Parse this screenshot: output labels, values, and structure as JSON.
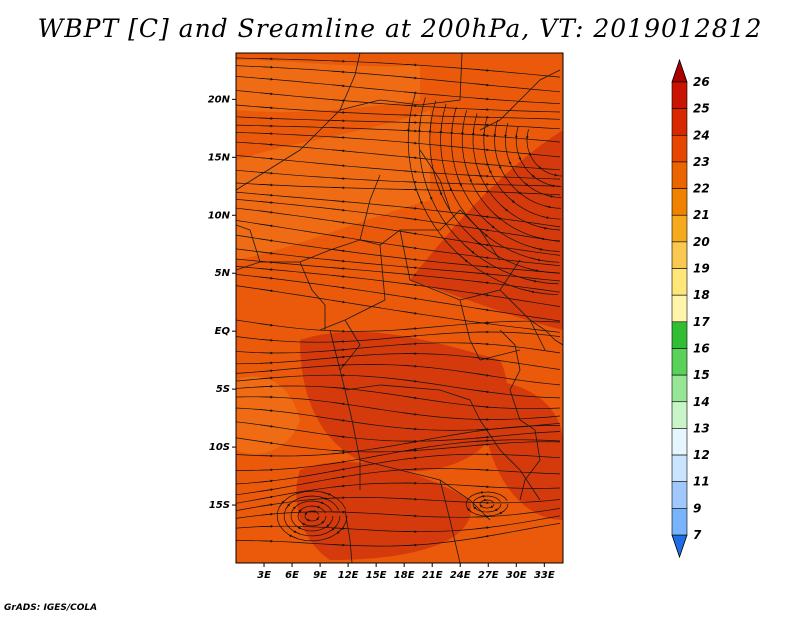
{
  "title": "WBPT [C] and Sreamline at 200hPa, VT: 2019012812",
  "credit": "GrADS: IGES/COLA",
  "map": {
    "lon_range": [
      0,
      35
    ],
    "lat_range": [
      -20,
      24
    ],
    "lat_ticks": [
      {
        "value": 20,
        "label": "20N"
      },
      {
        "value": 15,
        "label": "15N"
      },
      {
        "value": 10,
        "label": "10N"
      },
      {
        "value": 5,
        "label": "5N"
      },
      {
        "value": 0,
        "label": "EQ"
      },
      {
        "value": -5,
        "label": "5S"
      },
      {
        "value": -10,
        "label": "10S"
      },
      {
        "value": -15,
        "label": "15S"
      }
    ],
    "lon_ticks": [
      {
        "value": 3,
        "label": "3E"
      },
      {
        "value": 6,
        "label": "6E"
      },
      {
        "value": 9,
        "label": "9E"
      },
      {
        "value": 12,
        "label": "12E"
      },
      {
        "value": 15,
        "label": "15E"
      },
      {
        "value": 18,
        "label": "18E"
      },
      {
        "value": 21,
        "label": "21E"
      },
      {
        "value": 24,
        "label": "24E"
      },
      {
        "value": 27,
        "label": "27E"
      },
      {
        "value": 30,
        "label": "30E"
      },
      {
        "value": 33,
        "label": "33E"
      }
    ]
  },
  "colorbar": {
    "levels": [
      "7",
      "9",
      "11",
      "12",
      "13",
      "14",
      "15",
      "16",
      "17",
      "18",
      "19",
      "20",
      "21",
      "22",
      "23",
      "24",
      "25",
      "26"
    ],
    "colors": [
      "#1e6ee6",
      "#3c8cf0",
      "#5aa0f5",
      "#78b4fa",
      "#a0c8fc",
      "#c8e4ff",
      "#e6f6ff",
      "#c8f5c8",
      "#96e696",
      "#5ad25a",
      "#32be32",
      "#fff5aa",
      "#ffe678",
      "#fac850",
      "#f5aa1e",
      "#f08200",
      "#eb6400",
      "#e64600",
      "#d72800",
      "#c81400",
      "#aa0000"
    ]
  },
  "field_colors": {
    "base": "#ea5a0a",
    "warm": "#d53a0c",
    "light": "#f07218"
  }
}
